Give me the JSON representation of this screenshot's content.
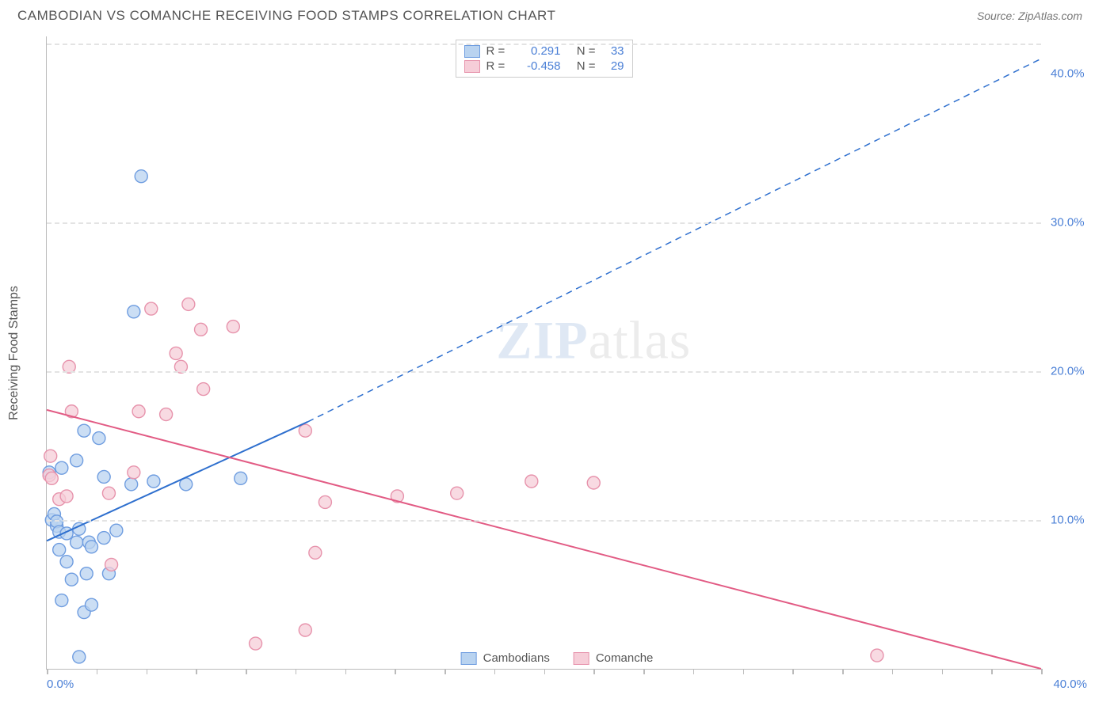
{
  "title": "CAMBODIAN VS COMANCHE RECEIVING FOOD STAMPS CORRELATION CHART",
  "source": "Source: ZipAtlas.com",
  "ylabel": "Receiving Food Stamps",
  "watermark_a": "ZIP",
  "watermark_b": "atlas",
  "legend_top": {
    "series": [
      {
        "swatch_fill": "#b9d3f0",
        "swatch_border": "#6f9de0",
        "r_label": "R =",
        "r_value": "0.291",
        "n_label": "N =",
        "n_value": "33"
      },
      {
        "swatch_fill": "#f6cdd8",
        "swatch_border": "#e793ac",
        "r_label": "R =",
        "r_value": "-0.458",
        "n_label": "N =",
        "n_value": "29"
      }
    ]
  },
  "legend_bottom": {
    "items": [
      {
        "swatch_fill": "#b9d3f0",
        "swatch_border": "#6f9de0",
        "label": "Cambodians"
      },
      {
        "swatch_fill": "#f6cdd8",
        "swatch_border": "#e793ac",
        "label": "Comanche"
      }
    ]
  },
  "chart": {
    "type": "scatter",
    "xlim": [
      0,
      40
    ],
    "ylim": [
      0,
      42.5
    ],
    "grid_y": [
      10,
      20,
      30,
      42
    ],
    "grid_color": "#e3e3e3",
    "y_ticks": [
      {
        "v": 10,
        "label": "10.0%"
      },
      {
        "v": 20,
        "label": "20.0%"
      },
      {
        "v": 30,
        "label": "30.0%"
      },
      {
        "v": 40,
        "label": "40.0%"
      }
    ],
    "x_ticks_minor": [
      0,
      2,
      4,
      6,
      8,
      10,
      12,
      14,
      16,
      18,
      20,
      22,
      24,
      26,
      28,
      30,
      32,
      34,
      36,
      38,
      40
    ],
    "x_ticks_labels": [
      {
        "v": 0,
        "label": "0.0%"
      },
      {
        "v": 40,
        "label": "40.0%"
      }
    ],
    "series": [
      {
        "name": "Cambodians",
        "marker_fill": "#b9d3f0",
        "marker_stroke": "#6f9de0",
        "marker_r": 8,
        "line_color": "#2e6fce",
        "line_width": 2,
        "trend_solid": {
          "x1": 0,
          "y1": 8.6,
          "x2": 10.5,
          "y2": 16.6
        },
        "trend_dashed": {
          "x1": 10.5,
          "y1": 16.6,
          "x2": 40,
          "y2": 41.0
        },
        "points": [
          [
            0.1,
            13.2
          ],
          [
            0.2,
            10.0
          ],
          [
            0.3,
            10.4
          ],
          [
            0.4,
            9.6
          ],
          [
            0.4,
            9.9
          ],
          [
            0.5,
            9.2
          ],
          [
            0.5,
            8.0
          ],
          [
            0.6,
            13.5
          ],
          [
            0.8,
            9.1
          ],
          [
            0.8,
            7.2
          ],
          [
            0.6,
            4.6
          ],
          [
            1.0,
            6.0
          ],
          [
            1.2,
            8.5
          ],
          [
            1.3,
            9.4
          ],
          [
            1.2,
            14.0
          ],
          [
            1.5,
            3.8
          ],
          [
            1.5,
            16.0
          ],
          [
            1.6,
            6.4
          ],
          [
            1.7,
            8.5
          ],
          [
            1.8,
            8.2
          ],
          [
            1.8,
            4.3
          ],
          [
            2.1,
            15.5
          ],
          [
            2.3,
            8.8
          ],
          [
            2.3,
            12.9
          ],
          [
            2.5,
            6.4
          ],
          [
            2.8,
            9.3
          ],
          [
            3.4,
            12.4
          ],
          [
            3.5,
            24.0
          ],
          [
            3.8,
            33.1
          ],
          [
            4.3,
            12.6
          ],
          [
            5.6,
            12.4
          ],
          [
            7.8,
            12.8
          ],
          [
            1.3,
            0.8
          ]
        ]
      },
      {
        "name": "Comanche",
        "marker_fill": "#f6cdd8",
        "marker_stroke": "#e793ac",
        "marker_r": 8,
        "line_color": "#e25b84",
        "line_width": 2,
        "trend_solid": {
          "x1": 0,
          "y1": 17.4,
          "x2": 40,
          "y2": 0.0
        },
        "points": [
          [
            0.1,
            13.0
          ],
          [
            0.2,
            12.8
          ],
          [
            0.15,
            14.3
          ],
          [
            0.5,
            11.4
          ],
          [
            0.8,
            11.6
          ],
          [
            0.9,
            20.3
          ],
          [
            1.0,
            17.3
          ],
          [
            2.5,
            11.8
          ],
          [
            2.6,
            7.0
          ],
          [
            3.5,
            13.2
          ],
          [
            3.7,
            17.3
          ],
          [
            4.2,
            24.2
          ],
          [
            4.8,
            17.1
          ],
          [
            5.2,
            21.2
          ],
          [
            5.4,
            20.3
          ],
          [
            5.7,
            24.5
          ],
          [
            6.2,
            22.8
          ],
          [
            6.3,
            18.8
          ],
          [
            7.5,
            23.0
          ],
          [
            8.4,
            1.7
          ],
          [
            10.4,
            16.0
          ],
          [
            10.8,
            7.8
          ],
          [
            11.2,
            11.2
          ],
          [
            10.4,
            2.6
          ],
          [
            14.1,
            11.6
          ],
          [
            16.5,
            11.8
          ],
          [
            19.5,
            12.6
          ],
          [
            22.0,
            12.5
          ],
          [
            33.4,
            0.9
          ]
        ]
      }
    ]
  },
  "colors": {
    "title_color": "#555555",
    "tick_color": "#4a7fd6",
    "axis_color": "#bbbbbb",
    "background": "#ffffff"
  }
}
